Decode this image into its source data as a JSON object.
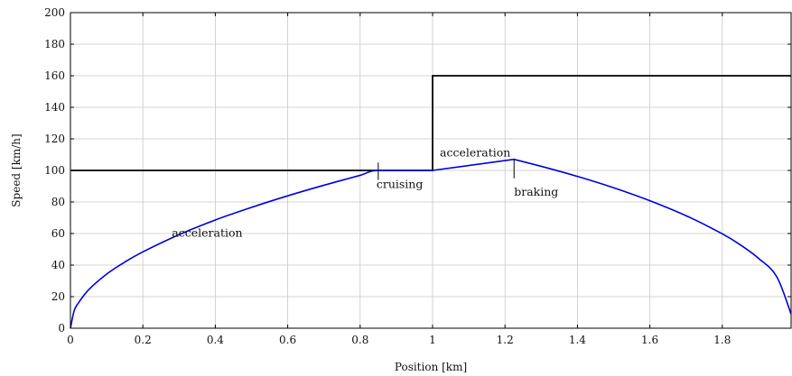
{
  "chart_data": {
    "type": "line",
    "xlabel": "Position [km]",
    "ylabel": "Speed [km/h]",
    "xlim": [
      0,
      1.99
    ],
    "ylim": [
      0,
      200
    ],
    "x_ticks": [
      0,
      0.2,
      0.4,
      0.6,
      0.8,
      1,
      1.2,
      1.4,
      1.6,
      1.8
    ],
    "x_tick_labels": [
      "0",
      "0.2",
      "0.4",
      "0.6",
      "0.8",
      "1",
      "1.2",
      "1.4",
      "1.6",
      "1.8"
    ],
    "y_ticks": [
      0,
      20,
      40,
      60,
      80,
      100,
      120,
      140,
      160,
      180,
      200
    ],
    "y_tick_labels": [
      "0",
      "20",
      "40",
      "60",
      "80",
      "100",
      "120",
      "140",
      "160",
      "180",
      "200"
    ],
    "grid": true,
    "series": [
      {
        "color": "#000000",
        "x": [
          0,
          1.0,
          1.0,
          1.99
        ],
        "y": [
          100,
          100,
          160,
          160
        ]
      },
      {
        "color": "#0000dd",
        "x": [
          0,
          0.01,
          0.02,
          0.05,
          0.1,
          0.15,
          0.2,
          0.3,
          0.4,
          0.5,
          0.6,
          0.7,
          0.8,
          0.85,
          1.0,
          1.225,
          1.3,
          1.4,
          1.5,
          1.6,
          1.7,
          1.8,
          1.85,
          1.9,
          1.95,
          1.99
        ],
        "y": [
          0,
          10.9,
          15.3,
          24.3,
          34.3,
          41.9,
          48.4,
          59.3,
          68.6,
          76.6,
          83.9,
          90.6,
          96.9,
          100,
          100,
          107,
          102.6,
          96.2,
          89.0,
          80.8,
          71.3,
          59.8,
          52.8,
          44.3,
          32.8,
          9
        ]
      }
    ],
    "annotations": [
      {
        "text": "acceleration",
        "x": 0.28,
        "y": 58
      },
      {
        "text": "cruising",
        "x": 0.845,
        "y": 89
      },
      {
        "text": "acceleration",
        "x": 1.02,
        "y": 109
      },
      {
        "text": "braking",
        "x": 1.225,
        "y": 84
      }
    ],
    "markers": [
      {
        "x": 0.85,
        "y1": 94,
        "y2": 105
      },
      {
        "x": 1.225,
        "y1": 95,
        "y2": 107
      }
    ]
  }
}
